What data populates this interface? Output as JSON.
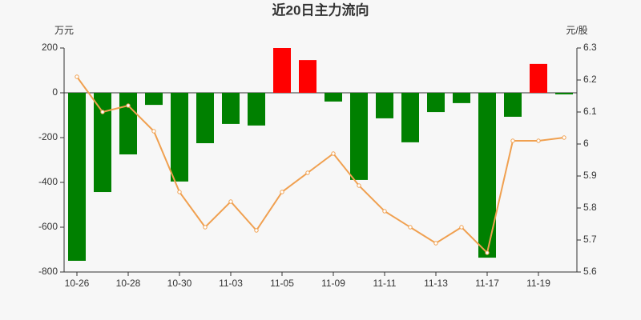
{
  "chart_data": {
    "type": "bar",
    "title": "近20日主力流向",
    "y_label": "万元",
    "y2_label": "元/股",
    "categories": [
      "10-26",
      null,
      "10-28",
      null,
      "10-30",
      null,
      "11-03",
      null,
      "11-05",
      null,
      "11-09",
      null,
      "11-11",
      null,
      "11-13",
      null,
      "11-17",
      null,
      "11-19",
      null
    ],
    "series": [
      {
        "type": "bar",
        "positive_color": "#ff0000",
        "negative_color": "#008000",
        "values": [
          -750,
          -443,
          -275,
          -54,
          -396,
          -225,
          -139,
          -146,
          200,
          146,
          -39,
          -389,
          -114,
          -221,
          -86,
          -46,
          -736,
          -107,
          129,
          -7
        ]
      },
      {
        "type": "line",
        "axis": "y2",
        "color": "#f0a050",
        "values": [
          6.21,
          6.1,
          6.12,
          6.04,
          5.85,
          5.74,
          5.82,
          5.73,
          5.85,
          5.91,
          5.97,
          5.87,
          5.79,
          5.74,
          5.69,
          5.74,
          5.66,
          6.01,
          6.01,
          6.02
        ]
      }
    ],
    "ylim": [
      -800,
      200
    ],
    "yticks": [
      -800,
      -600,
      -400,
      -200,
      0,
      200
    ],
    "y2lim": [
      5.6,
      6.3
    ],
    "y2ticks": [
      5.6,
      5.7,
      5.8,
      5.9,
      6,
      6.1,
      6.2,
      6.3
    ]
  }
}
